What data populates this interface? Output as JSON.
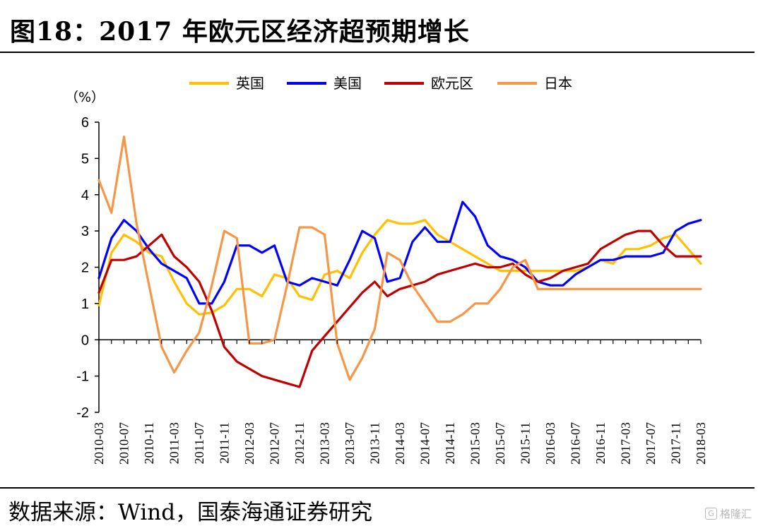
{
  "header": {
    "title": "图18：2017 年欧元区经济超预期增长"
  },
  "footer": {
    "source": "数据来源：Wind，国泰海通证券研究"
  },
  "watermark": {
    "text": "格隆汇",
    "icon": "watermark-logo-icon"
  },
  "chart_data": {
    "type": "line",
    "ylabel": "（%）",
    "ylim": [
      -2,
      6
    ],
    "yticks": [
      -2,
      -1,
      0,
      1,
      2,
      3,
      4,
      5,
      6
    ],
    "legend_position": "top",
    "grid": false,
    "x": [
      "2010-03",
      "2010-05",
      "2010-07",
      "2010-09",
      "2010-11",
      "2011-01",
      "2011-03",
      "2011-05",
      "2011-07",
      "2011-09",
      "2011-11",
      "2012-01",
      "2012-03",
      "2012-05",
      "2012-07",
      "2012-09",
      "2012-11",
      "2013-01",
      "2013-03",
      "2013-05",
      "2013-07",
      "2013-09",
      "2013-11",
      "2014-01",
      "2014-03",
      "2014-05",
      "2014-07",
      "2014-09",
      "2014-11",
      "2015-01",
      "2015-03",
      "2015-05",
      "2015-07",
      "2015-09",
      "2015-11",
      "2016-01",
      "2016-03",
      "2016-05",
      "2016-07",
      "2016-09",
      "2016-11",
      "2017-01",
      "2017-03",
      "2017-05",
      "2017-07",
      "2017-09",
      "2017-11",
      "2018-01",
      "2018-03"
    ],
    "xtick_labels": [
      "2010-03",
      "2010-07",
      "2010-11",
      "2011-03",
      "2011-07",
      "2011-11",
      "2012-03",
      "2012-07",
      "2012-11",
      "2013-03",
      "2013-07",
      "2013-11",
      "2014-03",
      "2014-07",
      "2014-11",
      "2015-03",
      "2015-07",
      "2015-11",
      "2016-03",
      "2016-07",
      "2016-11",
      "2017-03",
      "2017-07",
      "2017-11",
      "2018-03"
    ],
    "series": [
      {
        "name": "英国",
        "color": "#FFC000",
        "values": [
          0.95,
          2.4,
          2.9,
          2.7,
          2.4,
          2.3,
          1.6,
          1.0,
          0.7,
          0.75,
          0.95,
          1.4,
          1.4,
          1.2,
          1.8,
          1.7,
          1.2,
          1.1,
          1.8,
          1.9,
          1.7,
          2.4,
          2.9,
          3.3,
          3.2,
          3.2,
          3.3,
          2.9,
          2.7,
          2.5,
          2.3,
          2.1,
          1.9,
          1.9,
          1.9,
          1.9,
          1.9,
          1.9,
          1.9,
          2.0,
          2.2,
          2.1,
          2.5,
          2.5,
          2.6,
          2.8,
          2.9,
          2.5,
          2.1
        ]
      },
      {
        "name": "美国",
        "color": "#0000FF",
        "values": [
          1.7,
          2.8,
          3.3,
          3.0,
          2.5,
          2.1,
          1.9,
          1.7,
          1.0,
          1.0,
          1.6,
          2.6,
          2.6,
          2.4,
          2.6,
          1.6,
          1.5,
          1.7,
          1.6,
          1.5,
          2.2,
          3.0,
          2.8,
          1.6,
          1.7,
          2.7,
          3.1,
          2.7,
          2.7,
          3.8,
          3.4,
          2.6,
          2.3,
          2.2,
          2.0,
          1.6,
          1.5,
          1.5,
          1.8,
          2.0,
          2.2,
          2.2,
          2.3,
          2.3,
          2.3,
          2.4,
          3.0,
          3.2,
          3.3
        ]
      },
      {
        "name": "欧元区",
        "color": "#C00000",
        "values": [
          1.3,
          2.2,
          2.2,
          2.3,
          2.6,
          2.9,
          2.3,
          2.0,
          1.6,
          0.8,
          -0.2,
          -0.6,
          -0.8,
          -1.0,
          -1.1,
          -1.2,
          -1.3,
          -0.3,
          0.1,
          0.5,
          0.9,
          1.3,
          1.6,
          1.2,
          1.4,
          1.5,
          1.6,
          1.8,
          1.9,
          2.0,
          2.1,
          2.0,
          2.0,
          2.1,
          1.8,
          1.6,
          1.7,
          1.9,
          2.0,
          2.1,
          2.5,
          2.7,
          2.9,
          3.0,
          3.0,
          2.6,
          2.3,
          2.3,
          2.3
        ]
      },
      {
        "name": "日本",
        "color": "#F79646",
        "values": [
          4.4,
          3.5,
          5.6,
          3.2,
          1.5,
          -0.2,
          -0.9,
          -0.3,
          0.2,
          1.5,
          3.0,
          2.8,
          -0.1,
          -0.1,
          0.0,
          1.5,
          3.1,
          3.1,
          2.9,
          -0.1,
          -1.1,
          -0.5,
          0.3,
          2.4,
          2.2,
          1.5,
          1.0,
          0.5,
          0.5,
          0.7,
          1.0,
          1.0,
          1.4,
          2.0,
          2.2,
          1.4,
          1.4,
          1.4,
          1.4,
          1.4,
          1.4,
          1.4,
          1.4,
          1.4,
          1.4,
          1.4,
          1.4,
          1.4,
          1.4
        ]
      }
    ]
  }
}
